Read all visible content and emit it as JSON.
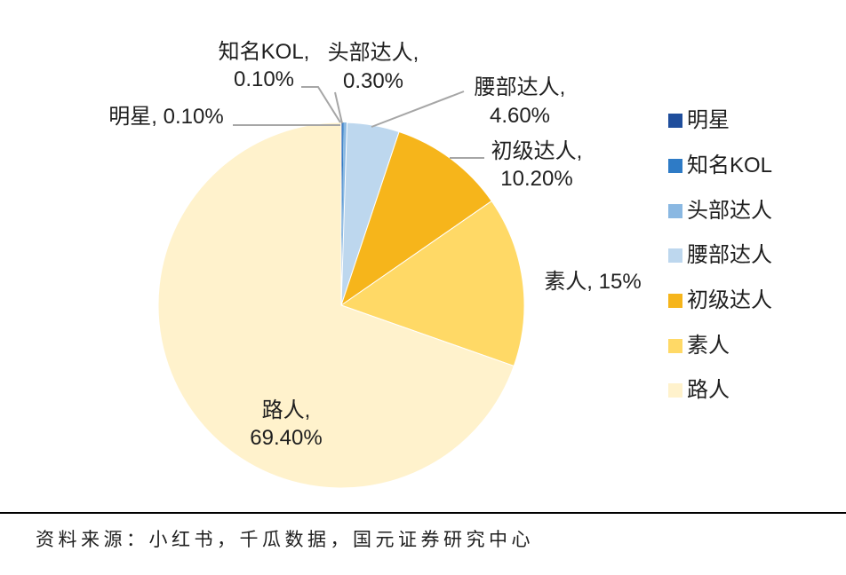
{
  "chart_data": {
    "type": "pie",
    "categories": [
      "明星",
      "知名KOL",
      "头部达人",
      "腰部达人",
      "初级达人",
      "素人",
      "路人"
    ],
    "values": [
      0.1,
      0.1,
      0.3,
      4.6,
      10.2,
      15,
      69.4
    ],
    "data_labels": [
      [
        "明星, 0.10%"
      ],
      [
        "知名KOL,",
        "0.10%"
      ],
      [
        "头部达人,",
        "0.30%"
      ],
      [
        "腰部达人,",
        "4.60%"
      ],
      [
        "初级达人,",
        "10.20%"
      ],
      [
        "素人, 15%"
      ],
      [
        "路人,",
        "69.40%"
      ]
    ],
    "colors": [
      "#1F4E9C",
      "#2E7BC6",
      "#8AB8E2",
      "#BDD7EE",
      "#F6B51B",
      "#FFD966",
      "#FFF2CC"
    ],
    "start_angle_deg": 0,
    "legend_position": "right"
  },
  "source": "资料来源：小红书，千瓜数据，国元证券研究中心"
}
